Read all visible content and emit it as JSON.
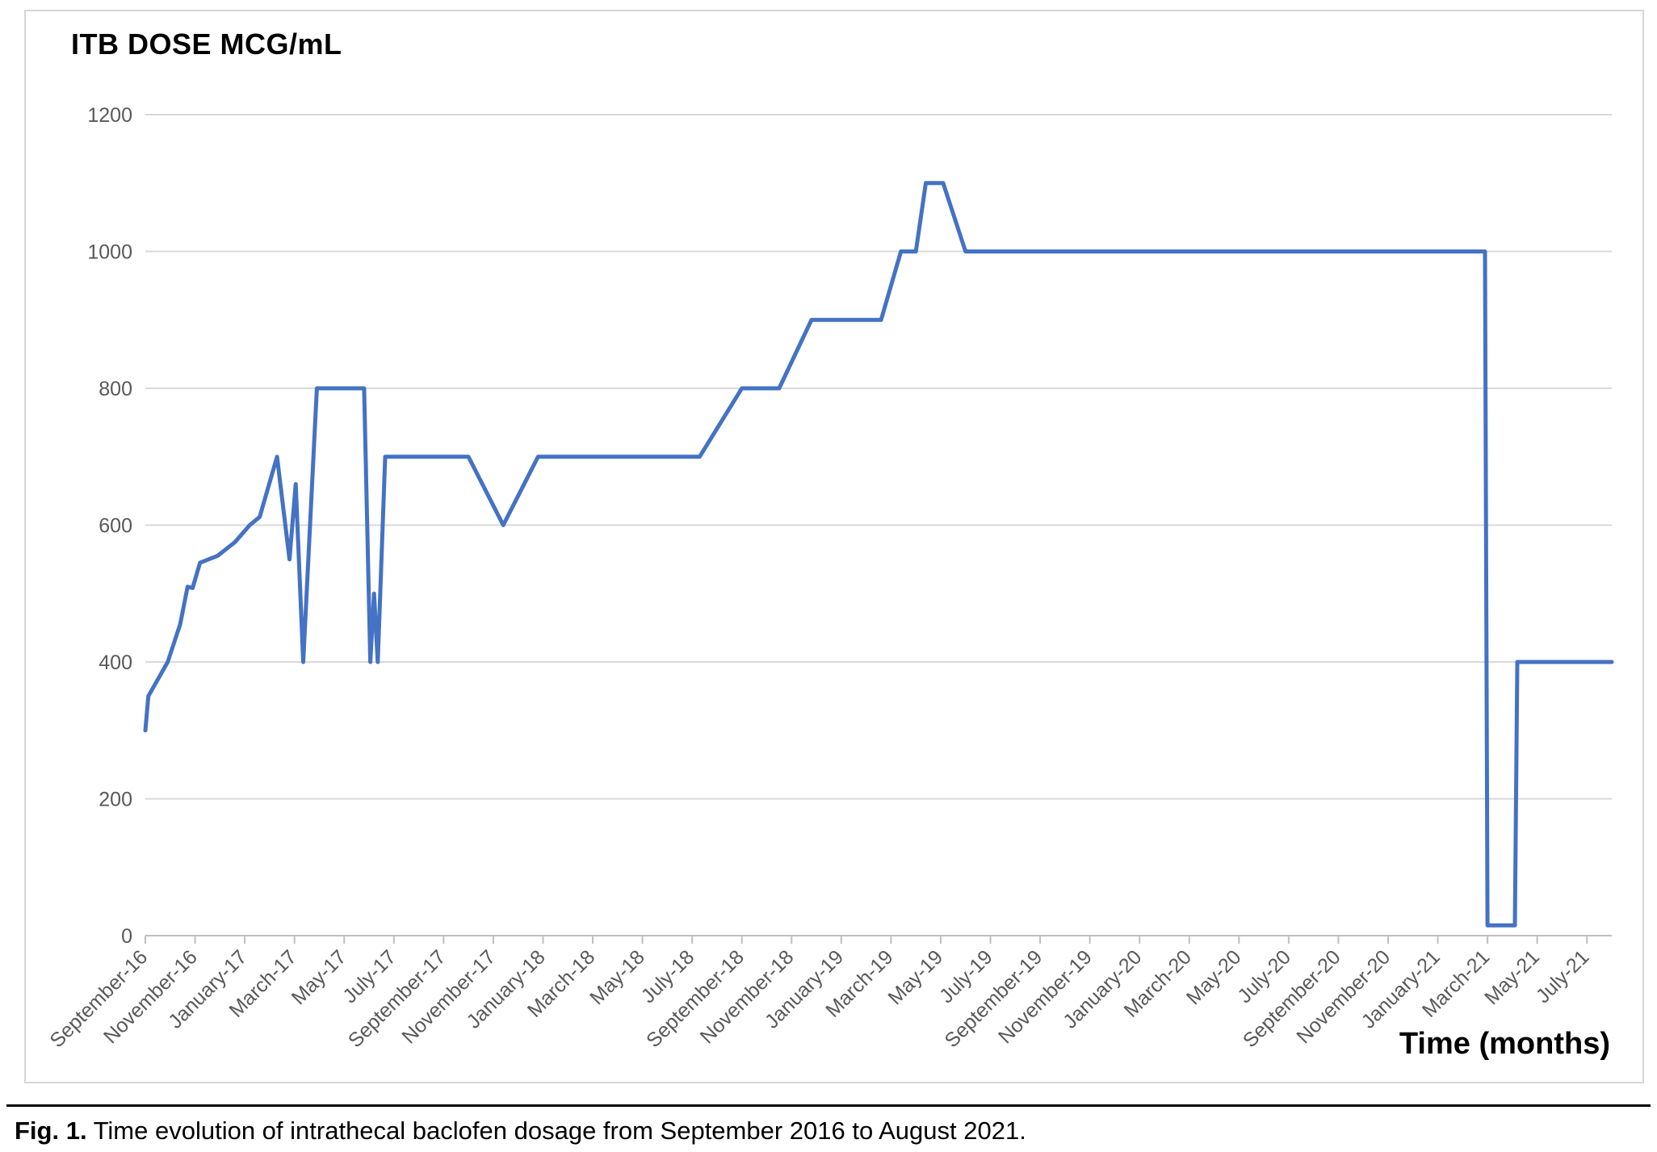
{
  "chart_data": {
    "type": "line",
    "title": "ITB DOSE MCG/mL",
    "xlabel": "Time (months)",
    "ylabel": "",
    "x_range": [
      0,
      59
    ],
    "y_range": [
      0,
      1200
    ],
    "grid": true,
    "legend": false,
    "y_ticks": [
      0,
      200,
      400,
      600,
      800,
      1000,
      1200
    ],
    "x_tick_positions": [
      0,
      2,
      4,
      6,
      8,
      10,
      12,
      14,
      16,
      18,
      20,
      22,
      24,
      26,
      28,
      30,
      32,
      34,
      36,
      38,
      40,
      42,
      44,
      46,
      48,
      50,
      52,
      54,
      56,
      58
    ],
    "x_tick_labels": [
      "September-16",
      "November-16",
      "January-17",
      "March-17",
      "May-17",
      "July-17",
      "September-17",
      "November-17",
      "January-18",
      "March-18",
      "May-18",
      "July-18",
      "September-18",
      "November-18",
      "January-19",
      "March-19",
      "May-19",
      "July-19",
      "September-19",
      "November-19",
      "January-20",
      "March-20",
      "May-20",
      "July-20",
      "September-20",
      "November-20",
      "January-21",
      "March-21",
      "May-21",
      "July-21"
    ],
    "points": [
      [
        0,
        300
      ],
      [
        0.12,
        350
      ],
      [
        0.9,
        400
      ],
      [
        1.4,
        455
      ],
      [
        1.7,
        510
      ],
      [
        1.9,
        508
      ],
      [
        2.2,
        545
      ],
      [
        2.9,
        555
      ],
      [
        3.6,
        575
      ],
      [
        4.2,
        600
      ],
      [
        4.6,
        612
      ],
      [
        5.3,
        700
      ],
      [
        5.8,
        550
      ],
      [
        6.05,
        660
      ],
      [
        6.35,
        400
      ],
      [
        6.9,
        800
      ],
      [
        8.8,
        800
      ],
      [
        9.05,
        400
      ],
      [
        9.2,
        500
      ],
      [
        9.35,
        400
      ],
      [
        9.65,
        700
      ],
      [
        13,
        700
      ],
      [
        14.4,
        600
      ],
      [
        15.8,
        700
      ],
      [
        22.3,
        700
      ],
      [
        24,
        800
      ],
      [
        25.5,
        800
      ],
      [
        26.8,
        900
      ],
      [
        29.6,
        900
      ],
      [
        30.4,
        1000
      ],
      [
        31,
        1000
      ],
      [
        31.4,
        1100
      ],
      [
        32.1,
        1100
      ],
      [
        33,
        1000
      ],
      [
        53.9,
        1000
      ],
      [
        54,
        15
      ],
      [
        55.1,
        15
      ],
      [
        55.2,
        400
      ],
      [
        59,
        400
      ]
    ],
    "colors": {
      "line": "#4472C4",
      "grid": "#D9D9D9",
      "axis": "#BFBFBF",
      "tick_text": "#595959"
    }
  },
  "caption": {
    "label": "Fig. 1.",
    "text": " Time evolution of intrathecal baclofen dosage from September 2016 to August 2021."
  }
}
